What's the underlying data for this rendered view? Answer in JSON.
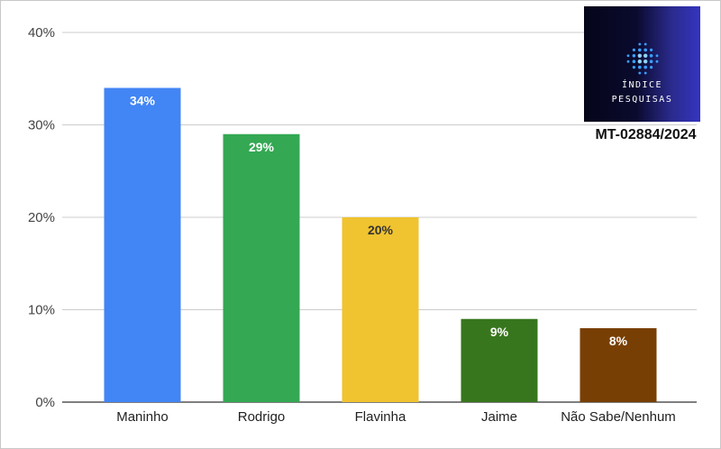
{
  "chart_data": {
    "type": "bar",
    "categories": [
      "Maninho",
      "Rodrigo",
      "Flavinha",
      "Jaime",
      "Não Sabe/Nenhum"
    ],
    "values": [
      34,
      29,
      20,
      9,
      8
    ],
    "data_labels": [
      "34%",
      "29%",
      "20%",
      "9%",
      "8%"
    ],
    "bar_colors": [
      "#4285f4",
      "#34a853",
      "#f0c330",
      "#38761d",
      "#783f04"
    ],
    "label_colors": [
      "#ffffff",
      "#ffffff",
      "#333333",
      "#ffffff",
      "#ffffff"
    ],
    "ylim": [
      0,
      40
    ],
    "yticks": [
      {
        "value": 0,
        "label": "0%"
      },
      {
        "value": 10,
        "label": "10%"
      },
      {
        "value": 20,
        "label": "20%"
      },
      {
        "value": 30,
        "label": "30%"
      },
      {
        "value": 40,
        "label": "40%"
      }
    ],
    "grid": true,
    "legend": "none",
    "title": "",
    "xlabel": "",
    "ylabel": ""
  },
  "logo": {
    "line1": "ÍNDICE",
    "line2": "PESQUISAS",
    "icon": "globe-dots-icon"
  },
  "report_code": "MT-02884/2024"
}
